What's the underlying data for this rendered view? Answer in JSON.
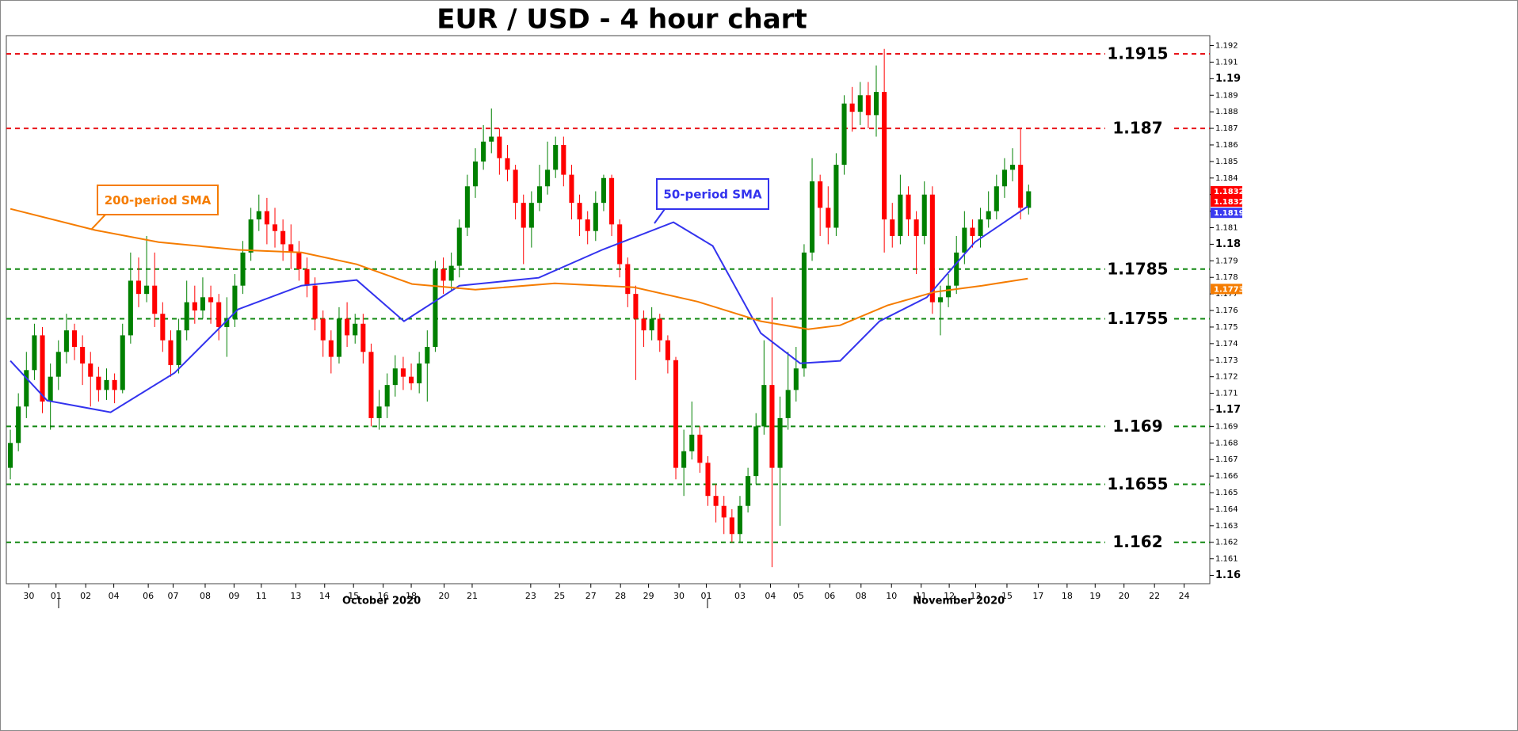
{
  "chart_data": {
    "type": "candlestick",
    "title": "EUR / USD - 4 hour chart",
    "xlim": [
      -0.5,
      149.6
    ],
    "ylim": [
      1.1595,
      1.1926
    ],
    "yticks": [
      1.16,
      1.161,
      1.162,
      1.163,
      1.164,
      1.165,
      1.166,
      1.167,
      1.168,
      1.169,
      1.17,
      1.171,
      1.172,
      1.173,
      1.174,
      1.175,
      1.176,
      1.177,
      1.178,
      1.179,
      1.18,
      1.181,
      1.182,
      1.183,
      1.184,
      1.185,
      1.186,
      1.187,
      1.188,
      1.189,
      1.19,
      1.191,
      1.192
    ],
    "x_labels": [
      {
        "x": 2.3,
        "label": "30"
      },
      {
        "x": 5.7,
        "label": "01"
      },
      {
        "x": 9.4,
        "label": "02"
      },
      {
        "x": 12.9,
        "label": "04"
      },
      {
        "x": 17.2,
        "label": "06"
      },
      {
        "x": 20.3,
        "label": "07"
      },
      {
        "x": 24.3,
        "label": "08"
      },
      {
        "x": 27.9,
        "label": "09"
      },
      {
        "x": 31.3,
        "label": "11"
      },
      {
        "x": 35.6,
        "label": "13"
      },
      {
        "x": 39.2,
        "label": "14"
      },
      {
        "x": 42.8,
        "label": "15"
      },
      {
        "x": 46.5,
        "label": "16"
      },
      {
        "x": 50,
        "label": "18"
      },
      {
        "x": 54.1,
        "label": "20"
      },
      {
        "x": 57.6,
        "label": "21"
      },
      {
        "x": 64.9,
        "label": "23"
      },
      {
        "x": 68.5,
        "label": "25"
      },
      {
        "x": 72.4,
        "label": "27"
      },
      {
        "x": 76.1,
        "label": "28"
      },
      {
        "x": 79.6,
        "label": "29"
      },
      {
        "x": 83.4,
        "label": "30"
      },
      {
        "x": 86.8,
        "label": "01"
      },
      {
        "x": 91,
        "label": "03"
      },
      {
        "x": 94.8,
        "label": "04"
      },
      {
        "x": 98.3,
        "label": "05"
      },
      {
        "x": 102.2,
        "label": "06"
      },
      {
        "x": 106.1,
        "label": "08"
      },
      {
        "x": 109.9,
        "label": "10"
      },
      {
        "x": 113.6,
        "label": "11"
      },
      {
        "x": 117.1,
        "label": "12"
      },
      {
        "x": 120.4,
        "label": "13"
      },
      {
        "x": 124.3,
        "label": "15"
      },
      {
        "x": 128.2,
        "label": "17"
      },
      {
        "x": 131.8,
        "label": "18"
      },
      {
        "x": 135.3,
        "label": "19"
      },
      {
        "x": 138.9,
        "label": "20"
      },
      {
        "x": 142.7,
        "label": "22"
      },
      {
        "x": 146.4,
        "label": "24"
      }
    ],
    "month_labels": [
      {
        "x": 46.3,
        "label": "October 2020"
      },
      {
        "x": 118.3,
        "label": "November 2020"
      }
    ],
    "up_color": "#008000",
    "down_color": "#ff0000",
    "candles": [
      [
        1.1665,
        1.1688,
        1.1658,
        1.168
      ],
      [
        1.168,
        1.171,
        1.1675,
        1.1702
      ],
      [
        1.1702,
        1.1735,
        1.1695,
        1.1724
      ],
      [
        1.1724,
        1.1752,
        1.1718,
        1.1745
      ],
      [
        1.1745,
        1.175,
        1.1698,
        1.1705
      ],
      [
        1.1705,
        1.1728,
        1.1688,
        1.172
      ],
      [
        1.172,
        1.1742,
        1.1712,
        1.1735
      ],
      [
        1.1735,
        1.1758,
        1.1728,
        1.1748
      ],
      [
        1.1748,
        1.1752,
        1.173,
        1.1738
      ],
      [
        1.1738,
        1.1745,
        1.1715,
        1.1728
      ],
      [
        1.1728,
        1.1735,
        1.1702,
        1.172
      ],
      [
        1.172,
        1.1726,
        1.1705,
        1.1712
      ],
      [
        1.1712,
        1.1725,
        1.1706,
        1.1718
      ],
      [
        1.1718,
        1.1722,
        1.1704,
        1.1712
      ],
      [
        1.1712,
        1.1752,
        1.171,
        1.1745
      ],
      [
        1.1745,
        1.1795,
        1.174,
        1.1778
      ],
      [
        1.1778,
        1.1792,
        1.1762,
        1.177
      ],
      [
        1.177,
        1.1805,
        1.1765,
        1.1775
      ],
      [
        1.1775,
        1.1795,
        1.175,
        1.1758
      ],
      [
        1.1758,
        1.1765,
        1.1735,
        1.1742
      ],
      [
        1.1742,
        1.1748,
        1.172,
        1.1727
      ],
      [
        1.1727,
        1.1755,
        1.1722,
        1.1748
      ],
      [
        1.1748,
        1.1778,
        1.1742,
        1.1765
      ],
      [
        1.1765,
        1.1775,
        1.1752,
        1.176
      ],
      [
        1.176,
        1.178,
        1.1755,
        1.1768
      ],
      [
        1.1768,
        1.1775,
        1.1752,
        1.1765
      ],
      [
        1.1765,
        1.177,
        1.1742,
        1.175
      ],
      [
        1.175,
        1.1768,
        1.1732,
        1.1755
      ],
      [
        1.1755,
        1.1782,
        1.175,
        1.1775
      ],
      [
        1.1775,
        1.1802,
        1.177,
        1.1795
      ],
      [
        1.1795,
        1.1822,
        1.179,
        1.1815
      ],
      [
        1.1815,
        1.183,
        1.1808,
        1.182
      ],
      [
        1.182,
        1.1828,
        1.18,
        1.1812
      ],
      [
        1.1812,
        1.1822,
        1.1798,
        1.1808
      ],
      [
        1.1808,
        1.1815,
        1.179,
        1.18
      ],
      [
        1.18,
        1.1812,
        1.1785,
        1.1795
      ],
      [
        1.1795,
        1.1802,
        1.1778,
        1.1785
      ],
      [
        1.1785,
        1.1792,
        1.1768,
        1.1775
      ],
      [
        1.1775,
        1.178,
        1.1748,
        1.1755
      ],
      [
        1.1755,
        1.176,
        1.1732,
        1.1742
      ],
      [
        1.1742,
        1.1748,
        1.1722,
        1.1732
      ],
      [
        1.1732,
        1.1762,
        1.1728,
        1.1755
      ],
      [
        1.1755,
        1.1765,
        1.1738,
        1.1745
      ],
      [
        1.1745,
        1.1758,
        1.174,
        1.1752
      ],
      [
        1.1752,
        1.1758,
        1.1728,
        1.1735
      ],
      [
        1.1735,
        1.174,
        1.169,
        1.1695
      ],
      [
        1.1695,
        1.1712,
        1.1688,
        1.1702
      ],
      [
        1.1702,
        1.1722,
        1.1695,
        1.1715
      ],
      [
        1.1715,
        1.1733,
        1.1708,
        1.1725
      ],
      [
        1.1725,
        1.1732,
        1.1712,
        1.172
      ],
      [
        1.172,
        1.1728,
        1.1712,
        1.1716
      ],
      [
        1.1716,
        1.1735,
        1.171,
        1.1728
      ],
      [
        1.1728,
        1.1748,
        1.1705,
        1.1738
      ],
      [
        1.1738,
        1.179,
        1.1735,
        1.1785
      ],
      [
        1.1785,
        1.1792,
        1.177,
        1.1778
      ],
      [
        1.1778,
        1.1795,
        1.1772,
        1.1787
      ],
      [
        1.1787,
        1.1815,
        1.178,
        1.181
      ],
      [
        1.181,
        1.1842,
        1.1805,
        1.1835
      ],
      [
        1.1835,
        1.1858,
        1.1828,
        1.185
      ],
      [
        1.185,
        1.1872,
        1.1845,
        1.1862
      ],
      [
        1.1862,
        1.1882,
        1.1855,
        1.1865
      ],
      [
        1.1865,
        1.187,
        1.1842,
        1.1852
      ],
      [
        1.1852,
        1.186,
        1.1838,
        1.1845
      ],
      [
        1.1845,
        1.1848,
        1.1815,
        1.1825
      ],
      [
        1.1825,
        1.183,
        1.1788,
        1.181
      ],
      [
        1.181,
        1.1832,
        1.1798,
        1.1825
      ],
      [
        1.1825,
        1.1848,
        1.182,
        1.1835
      ],
      [
        1.1835,
        1.1862,
        1.183,
        1.1845
      ],
      [
        1.1845,
        1.1865,
        1.184,
        1.186
      ],
      [
        1.186,
        1.1865,
        1.1835,
        1.1842
      ],
      [
        1.1842,
        1.1848,
        1.1815,
        1.1825
      ],
      [
        1.1825,
        1.183,
        1.1805,
        1.1815
      ],
      [
        1.1815,
        1.182,
        1.18,
        1.1808
      ],
      [
        1.1808,
        1.1832,
        1.1802,
        1.1825
      ],
      [
        1.1825,
        1.1842,
        1.182,
        1.184
      ],
      [
        1.184,
        1.1842,
        1.1805,
        1.1812
      ],
      [
        1.1812,
        1.1815,
        1.178,
        1.1788
      ],
      [
        1.1788,
        1.1792,
        1.1762,
        1.177
      ],
      [
        1.177,
        1.1775,
        1.1718,
        1.1755
      ],
      [
        1.1755,
        1.176,
        1.1738,
        1.1748
      ],
      [
        1.1748,
        1.1762,
        1.1742,
        1.1755
      ],
      [
        1.1755,
        1.1758,
        1.1735,
        1.1742
      ],
      [
        1.1742,
        1.1745,
        1.1722,
        1.173
      ],
      [
        1.173,
        1.1732,
        1.1658,
        1.1665
      ],
      [
        1.1665,
        1.1688,
        1.1648,
        1.1675
      ],
      [
        1.1675,
        1.1705,
        1.167,
        1.1685
      ],
      [
        1.1685,
        1.169,
        1.1662,
        1.1668
      ],
      [
        1.1668,
        1.1672,
        1.1642,
        1.1648
      ],
      [
        1.1648,
        1.1655,
        1.1632,
        1.1642
      ],
      [
        1.1642,
        1.1648,
        1.1625,
        1.1635
      ],
      [
        1.1635,
        1.164,
        1.162,
        1.1625
      ],
      [
        1.1625,
        1.1648,
        1.162,
        1.1642
      ],
      [
        1.1642,
        1.1665,
        1.1638,
        1.166
      ],
      [
        1.166,
        1.1698,
        1.1655,
        1.169
      ],
      [
        1.169,
        1.1742,
        1.1685,
        1.1715
      ],
      [
        1.1715,
        1.1768,
        1.1605,
        1.1665
      ],
      [
        1.1665,
        1.1708,
        1.163,
        1.1695
      ],
      [
        1.1695,
        1.1735,
        1.1688,
        1.1712
      ],
      [
        1.1712,
        1.1738,
        1.1705,
        1.1725
      ],
      [
        1.1725,
        1.18,
        1.172,
        1.1795
      ],
      [
        1.1795,
        1.1852,
        1.179,
        1.1838
      ],
      [
        1.1838,
        1.1842,
        1.1805,
        1.1822
      ],
      [
        1.1822,
        1.1835,
        1.18,
        1.181
      ],
      [
        1.181,
        1.1855,
        1.1805,
        1.1848
      ],
      [
        1.1848,
        1.189,
        1.1842,
        1.1885
      ],
      [
        1.1885,
        1.1895,
        1.1868,
        1.188
      ],
      [
        1.188,
        1.1898,
        1.1872,
        1.189
      ],
      [
        1.189,
        1.1898,
        1.187,
        1.1878
      ],
      [
        1.1878,
        1.1908,
        1.1865,
        1.1892
      ],
      [
        1.1892,
        1.1918,
        1.1795,
        1.1815
      ],
      [
        1.1815,
        1.1825,
        1.1798,
        1.1805
      ],
      [
        1.1805,
        1.1842,
        1.18,
        1.183
      ],
      [
        1.183,
        1.1835,
        1.1805,
        1.1815
      ],
      [
        1.1815,
        1.182,
        1.1782,
        1.1805
      ],
      [
        1.1805,
        1.1838,
        1.18,
        1.183
      ],
      [
        1.183,
        1.1835,
        1.1758,
        1.1765
      ],
      [
        1.1765,
        1.1775,
        1.1745,
        1.1768
      ],
      [
        1.1768,
        1.1782,
        1.1762,
        1.1775
      ],
      [
        1.1775,
        1.1805,
        1.177,
        1.1795
      ],
      [
        1.1795,
        1.182,
        1.1788,
        1.181
      ],
      [
        1.181,
        1.1815,
        1.1798,
        1.1805
      ],
      [
        1.1805,
        1.1822,
        1.1798,
        1.1815
      ],
      [
        1.1815,
        1.1832,
        1.181,
        1.182
      ],
      [
        1.182,
        1.1842,
        1.1815,
        1.1835
      ],
      [
        1.1835,
        1.1852,
        1.1828,
        1.1845
      ],
      [
        1.1845,
        1.1858,
        1.1838,
        1.1848
      ],
      [
        1.1848,
        1.187,
        1.1815,
        1.1822
      ],
      [
        1.1822,
        1.1836,
        1.1818,
        1.1832
      ]
    ],
    "series": [
      {
        "name": "50-period SMA",
        "color": "#3333ee",
        "x": [
          0,
          4.6,
          12.5,
          20.5,
          28.4,
          36.3,
          43.2,
          49.1,
          56,
          65.9,
          73.8,
          82.7,
          87.6,
          93.6,
          98.5,
          103.5,
          108.4,
          114.3,
          120.3,
          126.9
        ],
        "values": [
          1.17296,
          1.17056,
          1.16985,
          1.17224,
          1.17607,
          1.1775,
          1.17784,
          1.17535,
          1.1775,
          1.17798,
          1.17966,
          1.18133,
          1.1799,
          1.17463,
          1.17281,
          1.17296,
          1.17535,
          1.17679,
          1.18013,
          1.18229
        ]
      },
      {
        "name": "200-period SMA",
        "color": "#f57c00",
        "x": [
          0,
          10.6,
          18.5,
          28.4,
          36.3,
          43.2,
          50.1,
          58,
          67.9,
          77.8,
          85.7,
          93.6,
          99.5,
          103.5,
          109.4,
          115.3,
          121.2,
          126.9
        ],
        "values": [
          1.18214,
          1.18085,
          1.18013,
          1.17966,
          1.17951,
          1.17879,
          1.1776,
          1.17726,
          1.17764,
          1.1774,
          1.17654,
          1.17535,
          1.17487,
          1.17511,
          1.17631,
          1.17712,
          1.1775,
          1.17793
        ]
      }
    ],
    "levels": [
      {
        "value": 1.1915,
        "color": "#e8141a"
      },
      {
        "value": 1.187,
        "color": "#e8141a"
      },
      {
        "value": 1.1785,
        "color": "#118811"
      },
      {
        "value": 1.1755,
        "color": "#118811"
      },
      {
        "value": 1.169,
        "color": "#118811"
      },
      {
        "value": 1.1655,
        "color": "#118811"
      },
      {
        "value": 1.162,
        "color": "#118811"
      }
    ],
    "price_tags": [
      {
        "value": 1.1832,
        "color": "#ff0000"
      },
      {
        "value": 1.1832,
        "color": "#ff0000"
      },
      {
        "value": 1.1819,
        "color": "#3a3af0"
      },
      {
        "value": 1.1773,
        "color": "#f57c00"
      }
    ]
  }
}
